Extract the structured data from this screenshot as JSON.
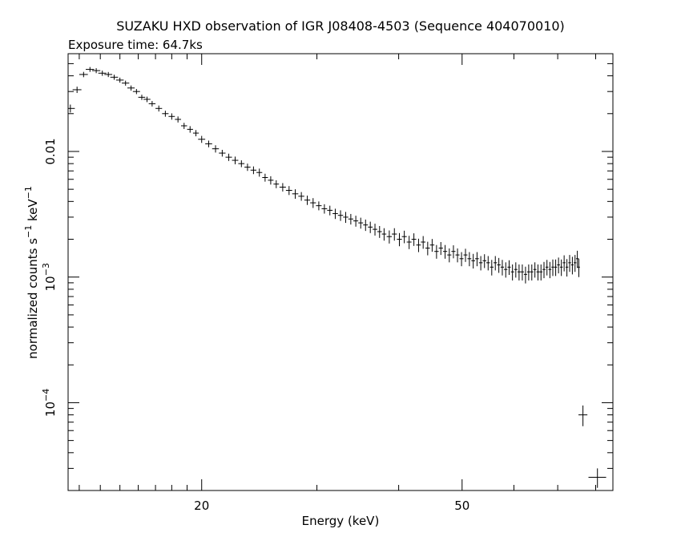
{
  "chart_data": {
    "type": "scatter",
    "title": "SUZAKU HXD observation of IGR J08408-4503 (Sequence 404070010)",
    "subtitle": "Exposure time: 64.7ks",
    "xlabel": "Energy (keV)",
    "ylabel": "normalized counts s^-1 keV^-1",
    "xscale": "log",
    "yscale": "log",
    "xlim": [
      12.5,
      85
    ],
    "ylim": [
      2e-05,
      0.06
    ],
    "grid": false,
    "x_ticks": [
      {
        "value": 20,
        "label": "20"
      },
      {
        "value": 50,
        "label": "50"
      }
    ],
    "y_ticks": [
      {
        "value": 0.01,
        "label": "0.01"
      },
      {
        "value": 0.001,
        "label": "10",
        "exp": "−3"
      },
      {
        "value": 0.0001,
        "label": "10",
        "exp": "−4"
      }
    ],
    "series": [
      {
        "points": [
          [
            12.6,
            0.022,
            0.2,
            0.0016
          ],
          [
            12.9,
            0.031,
            0.2,
            0.0018
          ],
          [
            13.2,
            0.041,
            0.2,
            0.002
          ],
          [
            13.5,
            0.045,
            0.2,
            0.002
          ],
          [
            13.8,
            0.044,
            0.2,
            0.002
          ],
          [
            14.1,
            0.042,
            0.2,
            0.002
          ],
          [
            14.4,
            0.041,
            0.2,
            0.0019
          ],
          [
            14.7,
            0.039,
            0.2,
            0.0018
          ],
          [
            15.0,
            0.037,
            0.2,
            0.0017
          ],
          [
            15.3,
            0.035,
            0.2,
            0.0016
          ],
          [
            15.6,
            0.032,
            0.2,
            0.0015
          ],
          [
            15.9,
            0.03,
            0.2,
            0.0014
          ],
          [
            16.2,
            0.027,
            0.2,
            0.0013
          ],
          [
            16.5,
            0.026,
            0.2,
            0.0013
          ],
          [
            16.8,
            0.024,
            0.2,
            0.0012
          ],
          [
            17.2,
            0.022,
            0.2,
            0.0012
          ],
          [
            17.6,
            0.02,
            0.2,
            0.0011
          ],
          [
            18.0,
            0.019,
            0.2,
            0.0011
          ],
          [
            18.4,
            0.018,
            0.2,
            0.001
          ],
          [
            18.8,
            0.016,
            0.2,
            0.0009
          ],
          [
            19.2,
            0.015,
            0.2,
            0.0009
          ],
          [
            19.6,
            0.014,
            0.2,
            0.0008
          ],
          [
            20.0,
            0.0125,
            0.25,
            0.0008
          ],
          [
            20.5,
            0.0115,
            0.25,
            0.0007
          ],
          [
            21.0,
            0.0105,
            0.25,
            0.0007
          ],
          [
            21.5,
            0.0097,
            0.25,
            0.0006
          ],
          [
            22.0,
            0.009,
            0.25,
            0.0006
          ],
          [
            22.5,
            0.0085,
            0.25,
            0.0006
          ],
          [
            23.0,
            0.008,
            0.25,
            0.0005
          ],
          [
            23.5,
            0.0075,
            0.25,
            0.0005
          ],
          [
            24.0,
            0.0071,
            0.25,
            0.0005
          ],
          [
            24.5,
            0.0068,
            0.25,
            0.0005
          ],
          [
            25.0,
            0.0062,
            0.25,
            0.00045
          ],
          [
            25.5,
            0.0059,
            0.25,
            0.00045
          ],
          [
            26.0,
            0.0055,
            0.25,
            0.0004
          ],
          [
            26.6,
            0.0052,
            0.3,
            0.0004
          ],
          [
            27.2,
            0.0049,
            0.3,
            0.0004
          ],
          [
            27.8,
            0.0046,
            0.3,
            0.0004
          ],
          [
            28.4,
            0.0044,
            0.3,
            0.00035
          ],
          [
            29.0,
            0.0041,
            0.3,
            0.00035
          ],
          [
            29.6,
            0.0039,
            0.3,
            0.00035
          ],
          [
            30.2,
            0.0037,
            0.3,
            0.0003
          ],
          [
            30.8,
            0.0035,
            0.3,
            0.0003
          ],
          [
            31.4,
            0.0034,
            0.3,
            0.0003
          ],
          [
            32.0,
            0.0032,
            0.3,
            0.0003
          ],
          [
            32.6,
            0.0031,
            0.3,
            0.0003
          ],
          [
            33.2,
            0.003,
            0.3,
            0.0003
          ],
          [
            33.8,
            0.0029,
            0.3,
            0.00028
          ],
          [
            34.4,
            0.0028,
            0.3,
            0.00028
          ],
          [
            35.0,
            0.0027,
            0.3,
            0.00027
          ],
          [
            35.6,
            0.0026,
            0.3,
            0.00027
          ],
          [
            36.2,
            0.0025,
            0.3,
            0.00026
          ],
          [
            36.8,
            0.0024,
            0.3,
            0.00026
          ],
          [
            37.4,
            0.0023,
            0.3,
            0.00025
          ],
          [
            38.0,
            0.0022,
            0.3,
            0.00025
          ],
          [
            38.7,
            0.0021,
            0.35,
            0.00025
          ],
          [
            39.4,
            0.0022,
            0.35,
            0.00025
          ],
          [
            40.1,
            0.002,
            0.35,
            0.00024
          ],
          [
            40.8,
            0.0021,
            0.35,
            0.00024
          ],
          [
            41.5,
            0.0019,
            0.35,
            0.00023
          ],
          [
            42.2,
            0.002,
            0.35,
            0.00023
          ],
          [
            42.9,
            0.0018,
            0.35,
            0.00022
          ],
          [
            43.6,
            0.0019,
            0.35,
            0.00022
          ],
          [
            44.3,
            0.0017,
            0.35,
            0.00021
          ],
          [
            45.0,
            0.0018,
            0.35,
            0.00021
          ],
          [
            45.7,
            0.0016,
            0.35,
            0.0002
          ],
          [
            46.4,
            0.0017,
            0.35,
            0.0002
          ],
          [
            47.1,
            0.0016,
            0.35,
            0.0002
          ],
          [
            47.8,
            0.0015,
            0.35,
            0.00019
          ],
          [
            48.5,
            0.0016,
            0.35,
            0.00019
          ],
          [
            49.2,
            0.0015,
            0.35,
            0.00019
          ],
          [
            49.9,
            0.0014,
            0.35,
            0.00018
          ],
          [
            50.6,
            0.0015,
            0.35,
            0.00018
          ],
          [
            51.3,
            0.0014,
            0.35,
            0.00018
          ],
          [
            52.0,
            0.00135,
            0.35,
            0.00018
          ],
          [
            52.7,
            0.0014,
            0.35,
            0.00018
          ],
          [
            53.4,
            0.0013,
            0.35,
            0.00017
          ],
          [
            54.1,
            0.00135,
            0.35,
            0.00017
          ],
          [
            54.8,
            0.0013,
            0.35,
            0.00017
          ],
          [
            55.5,
            0.0012,
            0.35,
            0.00017
          ],
          [
            56.2,
            0.0013,
            0.35,
            0.00017
          ],
          [
            56.9,
            0.00125,
            0.35,
            0.00017
          ],
          [
            57.6,
            0.0012,
            0.35,
            0.00017
          ],
          [
            58.3,
            0.00115,
            0.35,
            0.00016
          ],
          [
            59.0,
            0.0012,
            0.35,
            0.00016
          ],
          [
            59.7,
            0.0011,
            0.35,
            0.00016
          ],
          [
            60.4,
            0.00115,
            0.35,
            0.00016
          ],
          [
            61.1,
            0.0011,
            0.35,
            0.00016
          ],
          [
            61.8,
            0.0011,
            0.35,
            0.00016
          ],
          [
            62.5,
            0.00105,
            0.35,
            0.00016
          ],
          [
            63.2,
            0.0011,
            0.35,
            0.00016
          ],
          [
            63.9,
            0.0011,
            0.35,
            0.00016
          ],
          [
            64.6,
            0.00115,
            0.35,
            0.00016
          ],
          [
            65.3,
            0.0011,
            0.35,
            0.00016
          ],
          [
            66.0,
            0.0011,
            0.35,
            0.00016
          ],
          [
            66.7,
            0.00115,
            0.35,
            0.00017
          ],
          [
            67.4,
            0.0012,
            0.35,
            0.00017
          ],
          [
            68.1,
            0.00115,
            0.35,
            0.00017
          ],
          [
            68.8,
            0.0012,
            0.35,
            0.00018
          ],
          [
            69.5,
            0.0012,
            0.35,
            0.00018
          ],
          [
            70.2,
            0.00125,
            0.35,
            0.00018
          ],
          [
            70.9,
            0.0012,
            0.35,
            0.00018
          ],
          [
            71.6,
            0.0013,
            0.35,
            0.00019
          ],
          [
            72.3,
            0.0012,
            0.35,
            0.00019
          ],
          [
            73.0,
            0.0013,
            0.35,
            0.0002
          ],
          [
            73.7,
            0.00125,
            0.35,
            0.0002
          ],
          [
            74.4,
            0.0013,
            0.35,
            0.0002
          ],
          [
            75.0,
            0.0014,
            0.35,
            0.00022
          ],
          [
            75.4,
            0.0012,
            0.3,
            0.0002
          ],
          [
            76.5,
            8e-05,
            1.2,
            1.5e-05
          ],
          [
            80.5,
            2.55e-05,
            2.5,
            4.5e-06
          ]
        ]
      }
    ]
  }
}
